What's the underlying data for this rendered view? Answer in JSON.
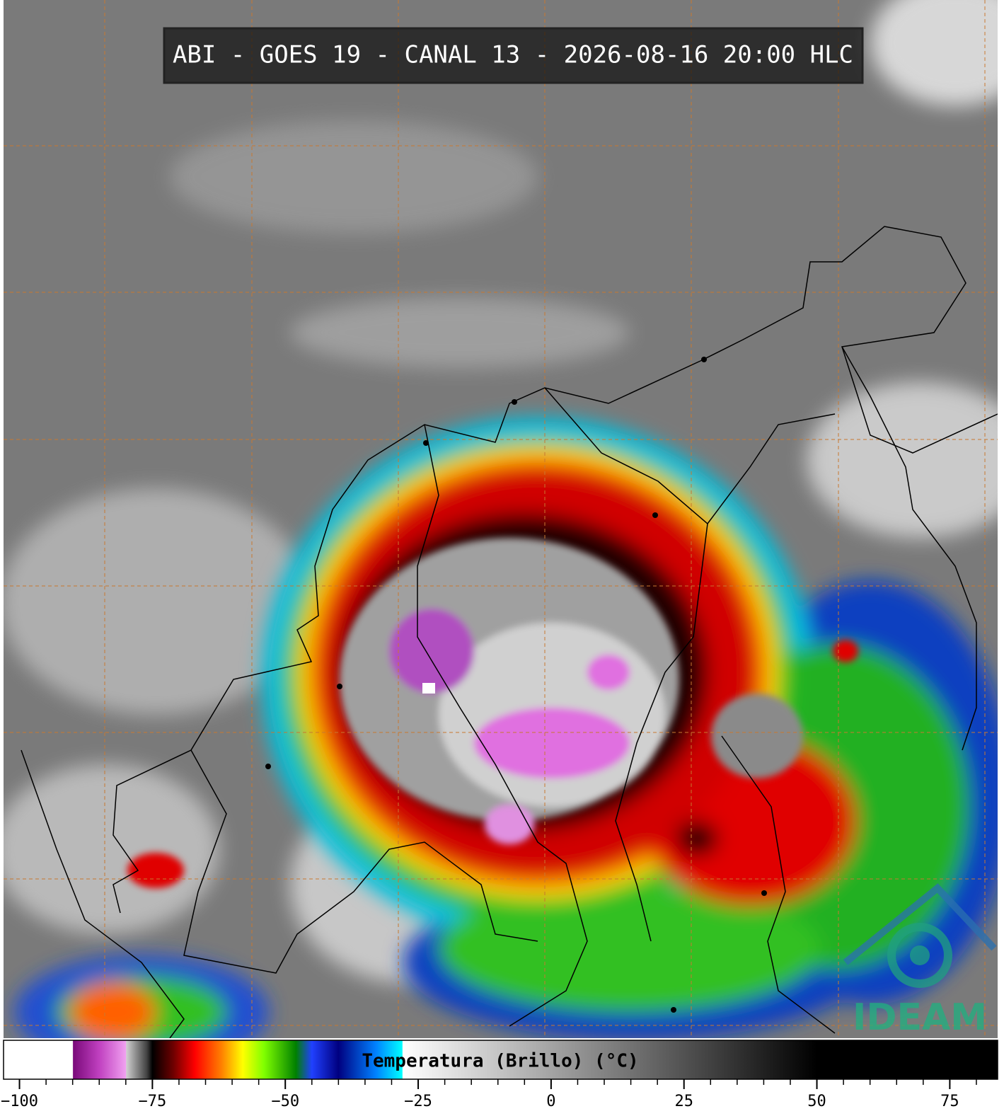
{
  "title": "ABI - GOES 19 - CANAL 13 - 2026-08-16 20:00 HLC",
  "logo": "IDEAM",
  "colorbar": {
    "label": "Temperatura (Brillo) (°C)",
    "lim": [
      -103,
      84
    ],
    "ticks": [
      {
        "value": -100,
        "label": "−100"
      },
      {
        "value": -75,
        "label": "−75"
      },
      {
        "value": -50,
        "label": "−50"
      },
      {
        "value": -25,
        "label": "−25"
      },
      0,
      25,
      50,
      75
    ],
    "minor_ticks": [
      -100,
      -95,
      -90,
      -85,
      -80,
      -75,
      -70,
      -65,
      -60,
      -55,
      -50,
      -45,
      -40,
      -35,
      -30,
      -25,
      -20,
      -15,
      -10,
      -5,
      0,
      5,
      10,
      15,
      20,
      25,
      30,
      35,
      40,
      45,
      50,
      55,
      60,
      65,
      70,
      75,
      80
    ],
    "stops": [
      {
        "value": -90,
        "color": "#ffffff"
      },
      {
        "value": -89.9,
        "color": "#7a0a7a"
      },
      {
        "value": -85,
        "color": "#c040c0"
      },
      {
        "value": -80,
        "color": "#f0a0f0"
      },
      {
        "value": -79.9,
        "color": "#d0d0d0"
      },
      {
        "value": -76,
        "color": "#404040"
      },
      {
        "value": -75,
        "color": "#000000"
      },
      {
        "value": -71,
        "color": "#700000"
      },
      {
        "value": -67,
        "color": "#ff0000"
      },
      {
        "value": -62,
        "color": "#ff8000"
      },
      {
        "value": -58,
        "color": "#ffff00"
      },
      {
        "value": -54,
        "color": "#80ff00"
      },
      {
        "value": -48,
        "color": "#008000"
      },
      {
        "value": -45,
        "color": "#2040ff"
      },
      {
        "value": -40,
        "color": "#000080"
      },
      {
        "value": -33,
        "color": "#0080ff"
      },
      {
        "value": -28,
        "color": "#00ffff"
      },
      {
        "value": -27.9,
        "color": "#ffffff"
      },
      {
        "value": 50,
        "color": "#000000"
      },
      {
        "value": 84,
        "color": "#000000"
      }
    ]
  }
}
